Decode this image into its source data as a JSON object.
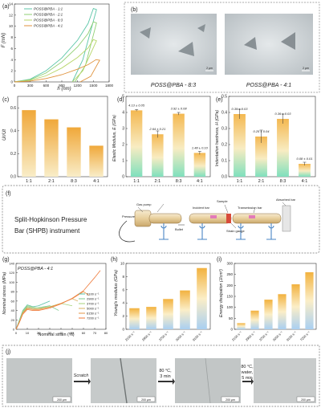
{
  "panels": {
    "a": {
      "label": "(a)",
      "ylabel": "F (mN)",
      "xlabel": "h (nm)",
      "xticks": [
        "0",
        "300",
        "600",
        "900",
        "1200",
        "1500",
        "1800"
      ],
      "yticks": [
        "0",
        "2",
        "4",
        "6",
        "8",
        "10",
        "12",
        "14"
      ],
      "legend": [
        "POSS@PBA - 1:1",
        "POSS@PBA - 2:1",
        "POSS@PBA - 8:3",
        "POSS@PBA - 4:1"
      ],
      "colors": [
        "#5cc6a8",
        "#8fcf73",
        "#b7d66a",
        "#e0923c"
      ]
    },
    "b": {
      "label": "(b)",
      "captions": [
        "POSS@PBA - 8:3",
        "POSS@PBA - 4:1"
      ],
      "scalebar": "2 μm"
    },
    "c": {
      "label": "(c)",
      "ylabel": "Ur/Ut",
      "yticks": [
        "0.0",
        "0.2",
        "0.4",
        "0.6"
      ],
      "categories": [
        "1:1",
        "2:1",
        "8:3",
        "4:1"
      ]
    },
    "d": {
      "label": "(d)",
      "ylabel": "Elastic Modulus, E (GPa)",
      "yticks": [
        "0",
        "1",
        "2",
        "3",
        "4",
        "5"
      ],
      "categories": [
        "1:1",
        "2:1",
        "8:3",
        "4:1"
      ],
      "value_labels": [
        "4.13 ± 0.05",
        "2.64 ± 0.21",
        "3.92 ± 0.08",
        "1.48 ± 0.10"
      ]
    },
    "e": {
      "label": "(e)",
      "ylabel": "Indentation hardness, H (GPa)",
      "yticks": [
        "0.0",
        "0.1",
        "0.2",
        "0.3",
        "0.4",
        "0.5"
      ],
      "categories": [
        "1:1",
        "2:1",
        "8:3",
        "4:1"
      ],
      "value_labels": [
        "0.39 ± 0.03",
        "0.25 ± 0.04",
        "0.36 ± 0.03",
        "0.08 ± 0.01"
      ]
    },
    "f": {
      "label": "(f)",
      "title_line1": "Split-Hopkinson Pressure",
      "title_line2": "Bar (SHPB) instrument",
      "labels": [
        "Gas pump",
        "Pressure",
        "Bullet",
        "Incident bar",
        "Sample",
        "Transmission bar",
        "Absorbed bar",
        "Strain gauge"
      ]
    },
    "g": {
      "label": "(g)",
      "title": "POSS@PBA - 4:1",
      "ylabel": "Nominal stress (MPa)",
      "xlabel": "Nominal strain (%)",
      "xticks": [
        "0",
        "10",
        "20",
        "30",
        "40",
        "50",
        "60",
        "70",
        "80"
      ],
      "yticks": [
        "0",
        "20",
        "40",
        "60",
        "80",
        "100",
        "120",
        "140"
      ],
      "legend": [
        "2100 s⁻¹",
        "2900 s⁻¹",
        "3700 s⁻¹",
        "5000 s⁻¹",
        "6150 s⁻¹",
        "7200 s⁻¹"
      ],
      "colors": [
        "#58c0a6",
        "#7fc98c",
        "#a7d27a",
        "#d8b062",
        "#e59447",
        "#ef7a3a"
      ]
    },
    "h": {
      "label": "(h)",
      "ylabel": "Young's modulus (GPa)",
      "yticks": [
        "0",
        "2",
        "4",
        "6",
        "8",
        "10"
      ],
      "categories": [
        "2100 s⁻¹",
        "2900 s⁻¹",
        "3700 s⁻¹",
        "5000 s⁻¹",
        "6150 s⁻¹"
      ]
    },
    "i": {
      "label": "(i)",
      "ylabel": "Energy dissipation (J/cm³)",
      "yticks": [
        "0",
        "50",
        "100",
        "150",
        "200",
        "250",
        "300"
      ],
      "categories": [
        "2100 s⁻¹",
        "2900 s⁻¹",
        "3700 s⁻¹",
        "5000 s⁻¹",
        "6150 s⁻¹",
        "7200 s⁻¹"
      ]
    },
    "j": {
      "label": "(j)",
      "steps": [
        "Scratch",
        "80 °C,",
        "3 min",
        "80 °C,",
        "water,",
        "5 min"
      ],
      "scalebar": "200 μm"
    }
  },
  "chart_data": [
    {
      "type": "line",
      "panel": "a",
      "xlabel": "h (nm)",
      "ylabel": "F (mN)",
      "xlim": [
        0,
        1800
      ],
      "ylim": [
        0,
        14
      ],
      "series": [
        {
          "name": "POSS@PBA - 1:1",
          "x": [
            0,
            300,
            600,
            900,
            1200,
            1400,
            1500,
            1560,
            1300,
            1100
          ],
          "y": [
            0,
            0.5,
            2.0,
            4.3,
            7.5,
            10.5,
            13.2,
            13.0,
            4.0,
            0
          ]
        },
        {
          "name": "POSS@PBA - 2:1",
          "x": [
            0,
            300,
            600,
            900,
            1200,
            1400,
            1500,
            1560,
            1350,
            1150
          ],
          "y": [
            0,
            0.4,
            1.6,
            3.6,
            6.3,
            8.7,
            10.8,
            10.6,
            3.0,
            0
          ]
        },
        {
          "name": "POSS@PBA - 8:3",
          "x": [
            0,
            300,
            600,
            900,
            1200,
            1400,
            1500,
            1560,
            1300,
            1100
          ],
          "y": [
            0,
            0.3,
            1.1,
            2.5,
            4.4,
            6.1,
            7.6,
            7.4,
            2.0,
            0
          ]
        },
        {
          "name": "POSS@PBA - 4:1",
          "x": [
            0,
            300,
            600,
            900,
            1200,
            1400,
            1550,
            1620,
            1450,
            1250
          ],
          "y": [
            0,
            0.15,
            0.6,
            1.3,
            2.3,
            3.1,
            4.0,
            3.9,
            1.0,
            0
          ]
        }
      ]
    },
    {
      "type": "bar",
      "panel": "c",
      "categories": [
        "1:1",
        "2:1",
        "8:3",
        "4:1"
      ],
      "values": [
        0.58,
        0.5,
        0.43,
        0.27
      ],
      "ylabel": "Ur/Ut",
      "ylim": [
        0,
        0.7
      ]
    },
    {
      "type": "bar",
      "panel": "d",
      "categories": [
        "1:1",
        "2:1",
        "8:3",
        "4:1"
      ],
      "values": [
        4.13,
        2.64,
        3.92,
        1.48
      ],
      "errors": [
        0.05,
        0.21,
        0.08,
        0.1
      ],
      "ylabel": "Elastic Modulus, E (GPa)",
      "ylim": [
        0,
        5
      ]
    },
    {
      "type": "bar",
      "panel": "e",
      "categories": [
        "1:1",
        "2:1",
        "8:3",
        "4:1"
      ],
      "values": [
        0.39,
        0.25,
        0.36,
        0.08
      ],
      "errors": [
        0.03,
        0.04,
        0.03,
        0.01
      ],
      "ylabel": "Indentation hardness, H (GPa)",
      "ylim": [
        0,
        0.5
      ]
    },
    {
      "type": "line",
      "panel": "g",
      "xlabel": "Nominal strain (%)",
      "ylabel": "Nominal stress (MPa)",
      "xlim": [
        0,
        80
      ],
      "ylim": [
        0,
        140
      ],
      "series": [
        {
          "name": "2100 s⁻¹",
          "x": [
            0,
            3,
            6,
            10,
            15,
            20,
            25,
            30
          ],
          "y": [
            0,
            20,
            40,
            52,
            48,
            50,
            55,
            60
          ]
        },
        {
          "name": "2900 s⁻¹",
          "x": [
            0,
            3,
            6,
            10,
            15,
            20,
            30,
            38
          ],
          "y": [
            0,
            18,
            36,
            48,
            45,
            46,
            50,
            40
          ]
        },
        {
          "name": "3700 s⁻¹",
          "x": [
            0,
            3,
            6,
            10,
            15,
            20,
            30,
            40,
            50
          ],
          "y": [
            0,
            18,
            38,
            50,
            47,
            45,
            48,
            55,
            50
          ]
        },
        {
          "name": "5000 s⁻¹",
          "x": [
            0,
            3,
            6,
            10,
            15,
            20,
            30,
            40,
            50,
            55
          ],
          "y": [
            0,
            16,
            35,
            46,
            44,
            43,
            47,
            55,
            65,
            60
          ]
        },
        {
          "name": "6150 s⁻¹",
          "x": [
            0,
            3,
            6,
            10,
            15,
            20,
            30,
            40,
            50,
            60,
            65
          ],
          "y": [
            0,
            15,
            34,
            44,
            42,
            42,
            47,
            55,
            65,
            80,
            72
          ]
        },
        {
          "name": "7200 s⁻¹",
          "x": [
            0,
            3,
            6,
            10,
            15,
            20,
            30,
            40,
            50,
            60,
            70,
            75
          ],
          "y": [
            0,
            15,
            32,
            42,
            40,
            40,
            45,
            54,
            66,
            82,
            110,
            125
          ]
        }
      ]
    },
    {
      "type": "bar",
      "panel": "h",
      "categories": [
        "2100 s⁻¹",
        "2900 s⁻¹",
        "3700 s⁻¹",
        "5000 s⁻¹",
        "6150 s⁻¹"
      ],
      "values": [
        3.2,
        3.4,
        4.6,
        5.9,
        9.3
      ],
      "ylabel": "Young's modulus (GPa)",
      "ylim": [
        0,
        10
      ]
    },
    {
      "type": "bar",
      "panel": "i",
      "categories": [
        "2100 s⁻¹",
        "2900 s⁻¹",
        "3700 s⁻¹",
        "5000 s⁻¹",
        "6150 s⁻¹",
        "7200 s⁻¹"
      ],
      "values": [
        28,
        85,
        135,
        160,
        205,
        260
      ],
      "ylabel": "Energy dissipation (J/cm³)",
      "ylim": [
        0,
        300
      ]
    }
  ]
}
